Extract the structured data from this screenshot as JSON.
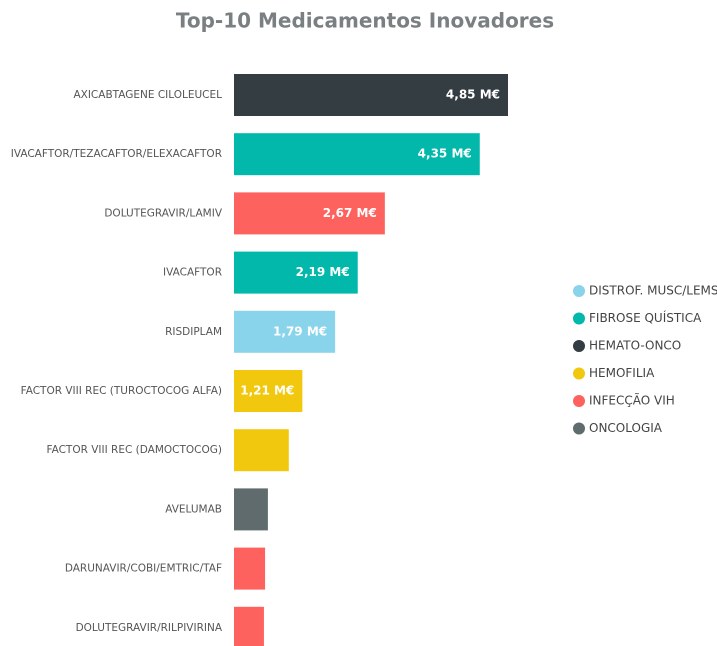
{
  "chart_data": {
    "type": "bar",
    "orientation": "horizontal",
    "title": "Top-10 Medicamentos Inovadores",
    "categories": [
      "AXICABTAGENE CILOLEUCEL",
      "IVACAFTOR/TEZACAFTOR/ELEXACAFTOR",
      "DOLUTEGRAVIR/LAMIV",
      "IVACAFTOR",
      "RISDIPLAM",
      "FACTOR VIII REC (TUROCTOCOG ALFA)",
      "FACTOR VIII REC (DAMOCTOCOG)",
      "AVELUMAB",
      "DARUNAVIR/COBI/EMTRIC/TAF",
      "DOLUTEGRAVIR/RILPIVIRINA"
    ],
    "values": [
      4.85,
      4.35,
      2.67,
      2.19,
      1.79,
      1.21,
      0.97,
      0.6,
      0.55,
      0.53
    ],
    "value_labels": [
      "4,85 M€",
      "4,35 M€",
      "2,67 M€",
      "2,19 M€",
      "1,79 M€",
      "1,21 M€",
      null,
      null,
      null,
      null
    ],
    "bar_colors": [
      "#333d42",
      "#01b8aa",
      "#fd625e",
      "#01b8aa",
      "#8ad4eb",
      "#f2c80f",
      "#f2c80f",
      "#5f6b6d",
      "#fd625e",
      "#fd625e"
    ],
    "legend": [
      {
        "name": "DISTROF. MUSC/LEMS",
        "color": "#8ad4eb"
      },
      {
        "name": "FIBROSE QUÍSTICA",
        "color": "#01b8aa"
      },
      {
        "name": "HEMATO-ONCO",
        "color": "#333d42"
      },
      {
        "name": "HEMOFILIA",
        "color": "#f2c80f"
      },
      {
        "name": "INFECÇÃO VIH",
        "color": "#fd625e"
      },
      {
        "name": "ONCOLOGIA",
        "color": "#5f6b6d"
      }
    ]
  }
}
